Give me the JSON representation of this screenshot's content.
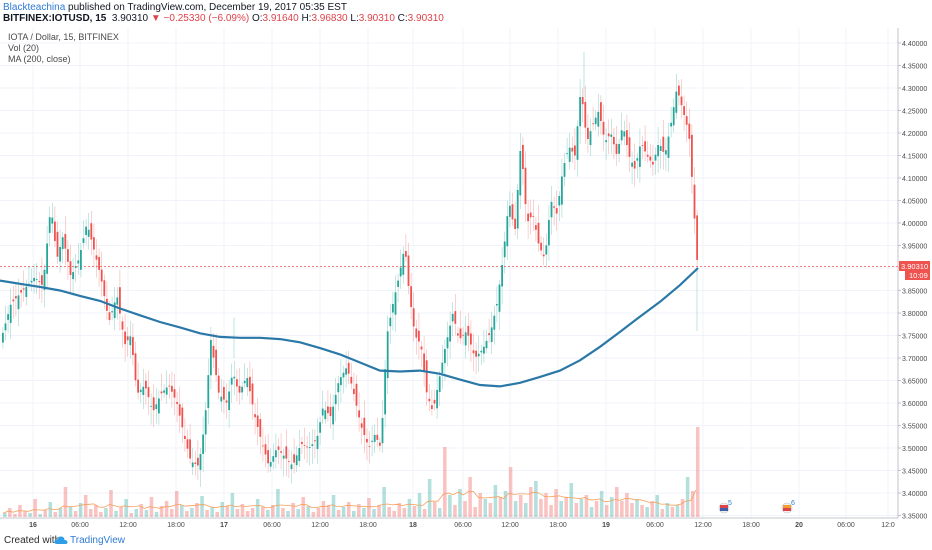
{
  "header": {
    "author": "Blackteachina",
    "published": " published on TradingView.com, December 19, 2017 05:35 EST",
    "symbol": "BITFINEX:IOTUSD, 15",
    "last": "3.90310",
    "change": "−0.25330 (−6.09%)",
    "o_label": "O:",
    "o": "3.91640",
    "h_label": "H:",
    "h": "3.96830",
    "l_label": "L:",
    "l": "3.90310",
    "c_label": "C:",
    "c": "3.90310"
  },
  "legend": {
    "title": "IOTA / Dollar, 15, BITFINEX",
    "vol": "Vol (20)",
    "ma": "MA (200, close)"
  },
  "footer": {
    "created_with": "Created with",
    "brand": "TradingView"
  },
  "colors": {
    "up": "#26a69a",
    "down": "#ef5350",
    "ma": "#2a78a8",
    "price_line": "#ef5350",
    "vol_ma": "#f5a05a"
  },
  "chart_data": {
    "type": "candlestick",
    "title": "IOTA / Dollar, 15, BITFINEX",
    "interval": "15",
    "y_range": [
      3.35,
      4.42
    ],
    "y_ticks": [
      "4.40000",
      "4.35000",
      "4.30000",
      "4.25000",
      "4.20000",
      "4.15000",
      "4.10000",
      "4.05000",
      "4.00000",
      "3.95000",
      "3.90000",
      "3.85000",
      "3.80000",
      "3.75000",
      "3.70000",
      "3.65000",
      "3.60000",
      "3.55000",
      "3.50000",
      "3.45000",
      "3.40000",
      "3.35000"
    ],
    "x_ticks": [
      "16",
      "06:00",
      "12:00",
      "18:00",
      "17",
      "06:00",
      "12:00",
      "18:00",
      "18",
      "06:00",
      "12:00",
      "18:00",
      "19",
      "06:00",
      "12:00",
      "18:00",
      "20",
      "06:00",
      "12:0"
    ],
    "last_price_label": "3.90310",
    "countdown_label": "10:09",
    "events": [
      "5",
      "6"
    ],
    "ma_series": {
      "name": "MA (200, close)",
      "points": [
        [
          0,
          3.872
        ],
        [
          20,
          3.865
        ],
        [
          40,
          3.858
        ],
        [
          60,
          3.85
        ],
        [
          80,
          3.838
        ],
        [
          100,
          3.827
        ],
        [
          120,
          3.81
        ],
        [
          140,
          3.795
        ],
        [
          160,
          3.78
        ],
        [
          180,
          3.768
        ],
        [
          200,
          3.755
        ],
        [
          220,
          3.747
        ],
        [
          240,
          3.745
        ],
        [
          260,
          3.745
        ],
        [
          280,
          3.742
        ],
        [
          300,
          3.735
        ],
        [
          320,
          3.722
        ],
        [
          340,
          3.708
        ],
        [
          360,
          3.69
        ],
        [
          380,
          3.672
        ],
        [
          400,
          3.67
        ],
        [
          420,
          3.672
        ],
        [
          440,
          3.665
        ],
        [
          460,
          3.652
        ],
        [
          480,
          3.64
        ],
        [
          500,
          3.637
        ],
        [
          520,
          3.645
        ],
        [
          540,
          3.658
        ],
        [
          560,
          3.672
        ],
        [
          580,
          3.695
        ],
        [
          600,
          3.725
        ],
        [
          620,
          3.758
        ],
        [
          640,
          3.792
        ],
        [
          660,
          3.825
        ],
        [
          680,
          3.862
        ],
        [
          698,
          3.9
        ]
      ]
    },
    "price_path": [
      [
        0,
        3.74
      ],
      [
        10,
        3.82
      ],
      [
        22,
        3.85
      ],
      [
        34,
        3.88
      ],
      [
        42,
        3.86
      ],
      [
        50,
        4.04
      ],
      [
        56,
        3.92
      ],
      [
        62,
        3.97
      ],
      [
        70,
        3.88
      ],
      [
        78,
        3.92
      ],
      [
        86,
        4.0
      ],
      [
        92,
        3.95
      ],
      [
        100,
        3.88
      ],
      [
        108,
        3.78
      ],
      [
        116,
        3.84
      ],
      [
        124,
        3.73
      ],
      [
        130,
        3.75
      ],
      [
        136,
        3.62
      ],
      [
        144,
        3.64
      ],
      [
        152,
        3.58
      ],
      [
        160,
        3.62
      ],
      [
        168,
        3.64
      ],
      [
        176,
        3.6
      ],
      [
        184,
        3.52
      ],
      [
        190,
        3.47
      ],
      [
        198,
        3.46
      ],
      [
        204,
        3.56
      ],
      [
        210,
        3.74
      ],
      [
        218,
        3.62
      ],
      [
        226,
        3.6
      ],
      [
        232,
        3.67
      ],
      [
        238,
        3.62
      ],
      [
        246,
        3.66
      ],
      [
        254,
        3.57
      ],
      [
        260,
        3.52
      ],
      [
        268,
        3.46
      ],
      [
        276,
        3.5
      ],
      [
        284,
        3.48
      ],
      [
        292,
        3.46
      ],
      [
        300,
        3.51
      ],
      [
        308,
        3.5
      ],
      [
        316,
        3.52
      ],
      [
        322,
        3.59
      ],
      [
        330,
        3.57
      ],
      [
        338,
        3.65
      ],
      [
        346,
        3.68
      ],
      [
        352,
        3.63
      ],
      [
        360,
        3.55
      ],
      [
        368,
        3.5
      ],
      [
        374,
        3.53
      ],
      [
        380,
        3.5
      ],
      [
        386,
        3.75
      ],
      [
        392,
        3.82
      ],
      [
        398,
        3.88
      ],
      [
        404,
        3.95
      ],
      [
        408,
        3.85
      ],
      [
        414,
        3.75
      ],
      [
        420,
        3.73
      ],
      [
        426,
        3.62
      ],
      [
        432,
        3.58
      ],
      [
        438,
        3.65
      ],
      [
        444,
        3.72
      ],
      [
        452,
        3.8
      ],
      [
        458,
        3.74
      ],
      [
        466,
        3.76
      ],
      [
        474,
        3.7
      ],
      [
        482,
        3.72
      ],
      [
        490,
        3.76
      ],
      [
        496,
        3.82
      ],
      [
        502,
        3.92
      ],
      [
        508,
        4.05
      ],
      [
        514,
        3.98
      ],
      [
        520,
        4.18
      ],
      [
        526,
        4.0
      ],
      [
        532,
        4.02
      ],
      [
        538,
        3.95
      ],
      [
        544,
        3.92
      ],
      [
        550,
        4.05
      ],
      [
        556,
        4.02
      ],
      [
        562,
        4.12
      ],
      [
        568,
        4.17
      ],
      [
        574,
        4.15
      ],
      [
        580,
        4.3
      ],
      [
        586,
        4.18
      ],
      [
        592,
        4.22
      ],
      [
        598,
        4.25
      ],
      [
        604,
        4.18
      ],
      [
        610,
        4.2
      ],
      [
        616,
        4.15
      ],
      [
        622,
        4.22
      ],
      [
        628,
        4.15
      ],
      [
        634,
        4.12
      ],
      [
        640,
        4.18
      ],
      [
        646,
        4.15
      ],
      [
        652,
        4.13
      ],
      [
        658,
        4.18
      ],
      [
        664,
        4.15
      ],
      [
        670,
        4.22
      ],
      [
        676,
        4.3
      ],
      [
        682,
        4.25
      ],
      [
        688,
        4.2
      ],
      [
        692,
        4.07
      ],
      [
        696,
        3.92
      ],
      [
        698,
        3.9
      ]
    ],
    "volume_heights": [
      4,
      9,
      3,
      12,
      6,
      4,
      18,
      3,
      7,
      15,
      5,
      9,
      30,
      10,
      6,
      14,
      22,
      8,
      12,
      5,
      9,
      27,
      6,
      10,
      18,
      4,
      8,
      13,
      7,
      20,
      5,
      11,
      16,
      8,
      26,
      12,
      6,
      9,
      14,
      21,
      7,
      10,
      5,
      15,
      11,
      24,
      8,
      13,
      6,
      9,
      18,
      10,
      7,
      12,
      28,
      9,
      6,
      14,
      8,
      20,
      11,
      5,
      9,
      16,
      12,
      22,
      7,
      10,
      15,
      6,
      13,
      9,
      19,
      8,
      12,
      30,
      10,
      6,
      14,
      9,
      18,
      11,
      24,
      8,
      38,
      15,
      9,
      70,
      22,
      12,
      28,
      16,
      40,
      10,
      24,
      18,
      14,
      32,
      20,
      26,
      50,
      16,
      22,
      14,
      30,
      36,
      18,
      24,
      12,
      28,
      16,
      20,
      34,
      14,
      18,
      22,
      10,
      16,
      26,
      12,
      20,
      30,
      16,
      24,
      14,
      18,
      12,
      10,
      16,
      22,
      8,
      14,
      10,
      12,
      18,
      40,
      26,
      90
    ]
  }
}
